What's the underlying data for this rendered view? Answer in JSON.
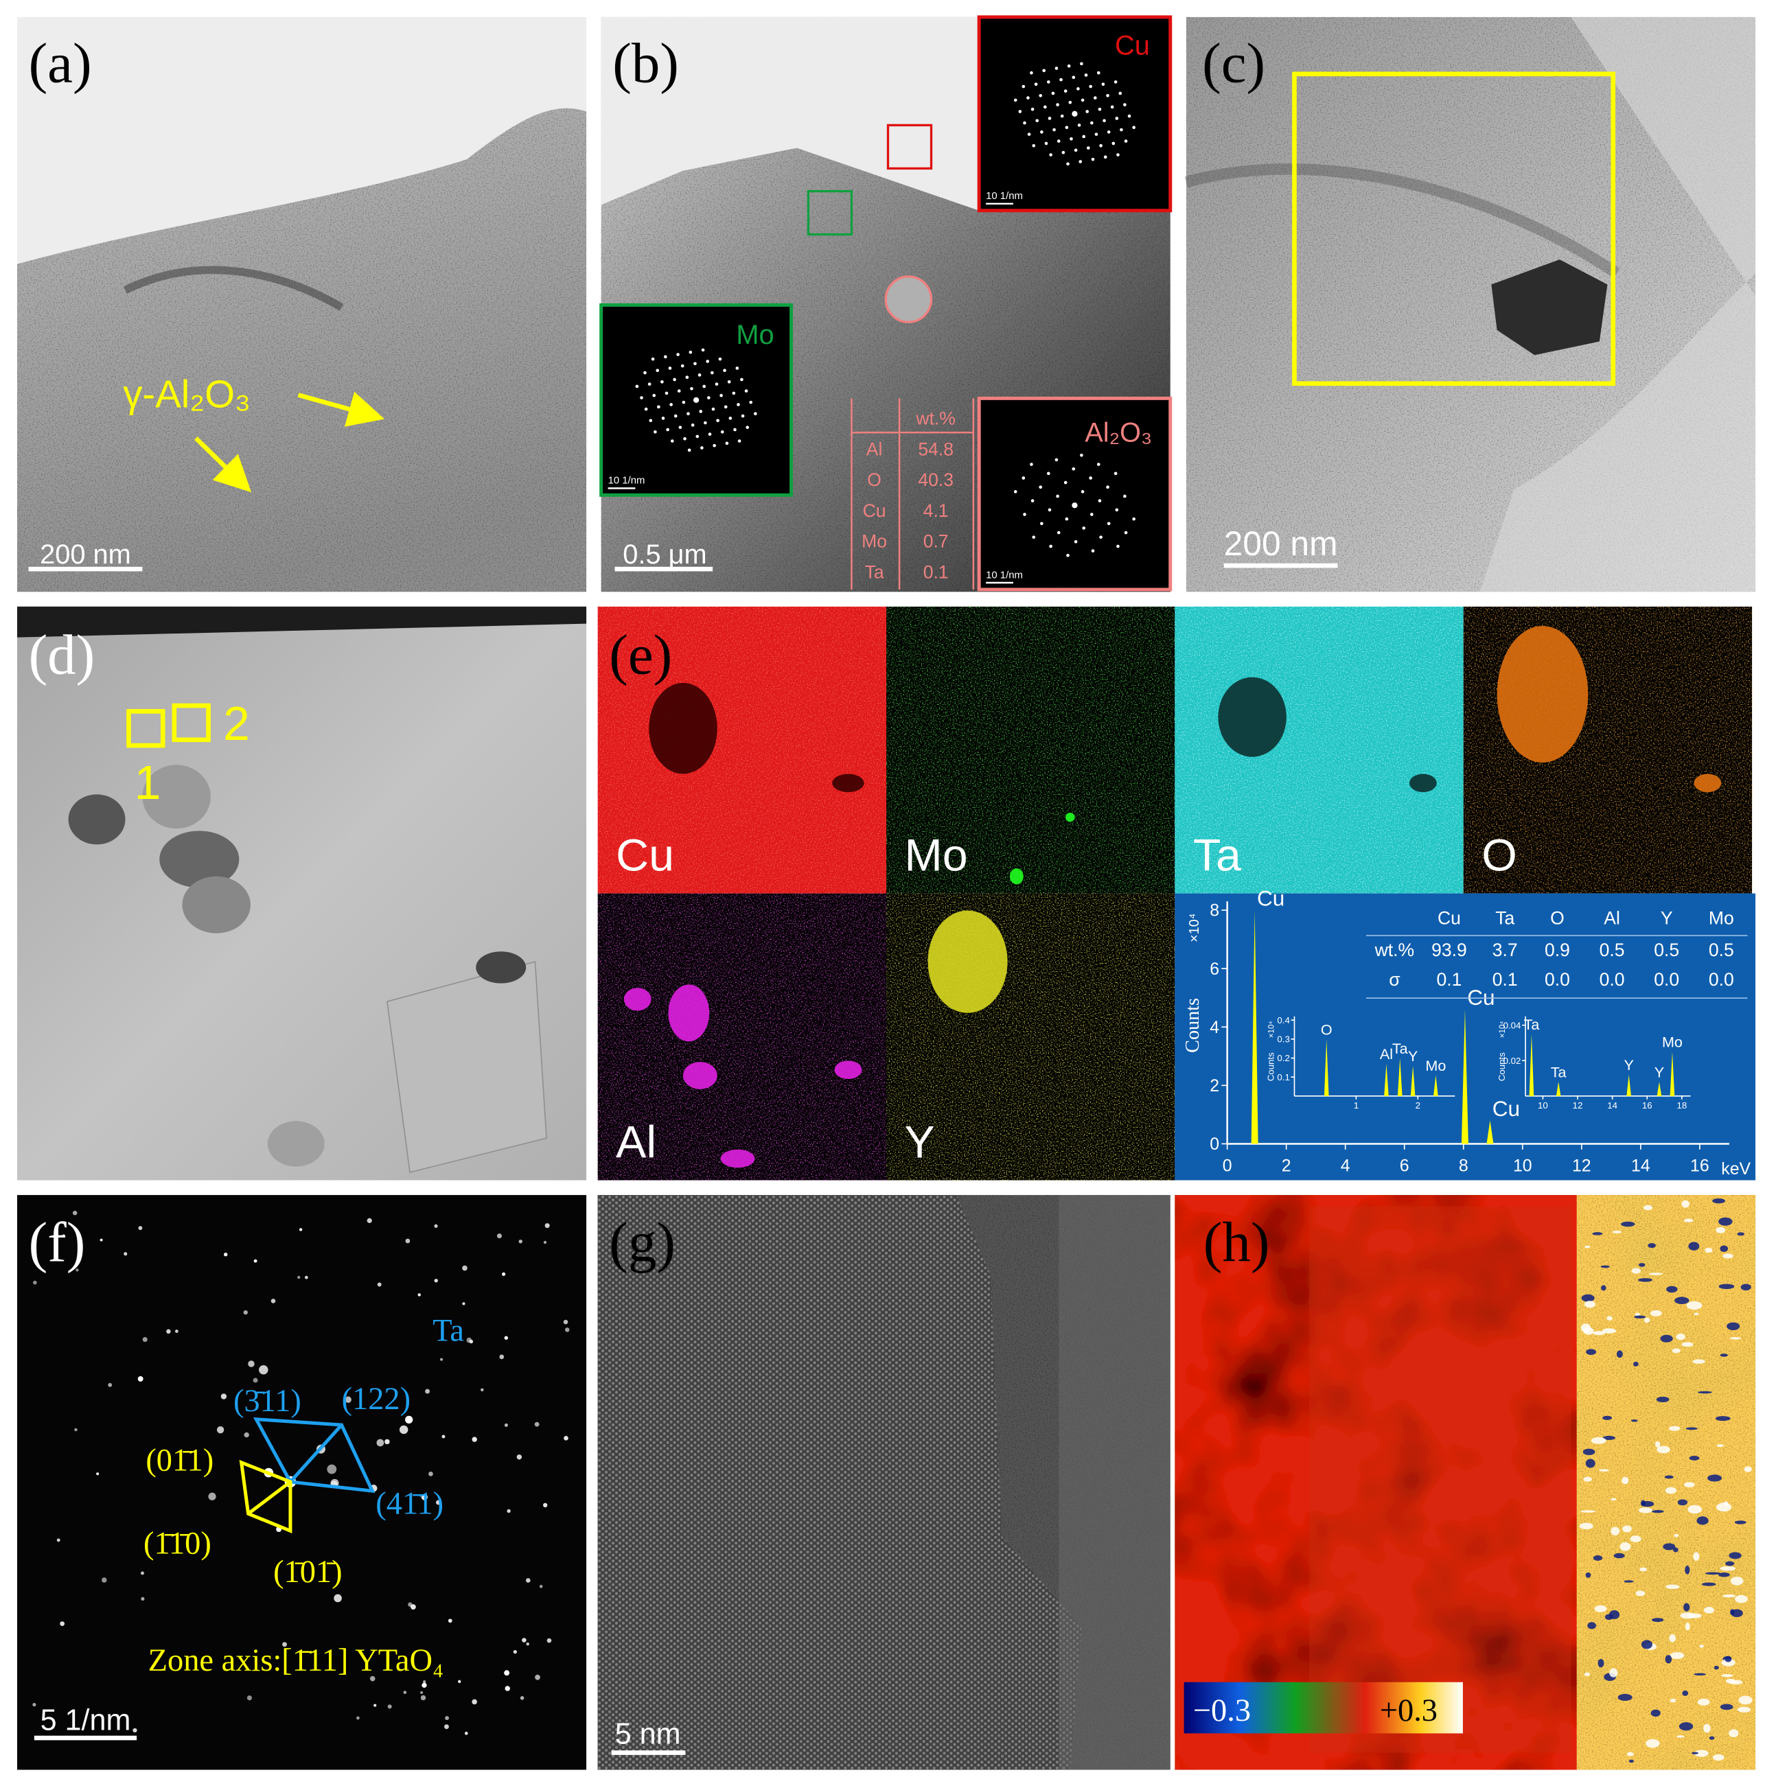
{
  "panels": {
    "a": {
      "label": "(a)",
      "annotation": "γ-Al₂O₃",
      "scale_bar": "200 nm"
    },
    "b": {
      "label": "(b)",
      "insets": [
        {
          "name": "Cu",
          "scale_bar": "10 1/nm"
        },
        {
          "name": "Mo",
          "scale_bar": "10 1/nm"
        },
        {
          "name": "Al₂O₃",
          "scale_bar": "10 1/nm"
        }
      ],
      "table": {
        "header": "wt.%",
        "rows": [
          [
            "Al",
            54.8
          ],
          [
            "O",
            40.3
          ],
          [
            "Cu",
            4.1
          ],
          [
            "Mo",
            0.7
          ],
          [
            "Ta",
            0.1
          ]
        ]
      },
      "scale_bar": "0.5 μm"
    },
    "c": {
      "label": "(c)",
      "scale_bar": "200 nm"
    },
    "d": {
      "label": "(d)",
      "regions": [
        "1",
        "2"
      ]
    },
    "e": {
      "label": "(e)",
      "maps": [
        "Cu",
        "Mo",
        "Ta",
        "O",
        "Al",
        "Y"
      ],
      "spectrum": {
        "ylabel": "Counts",
        "yunit": "×10⁴",
        "xlabel": "keV",
        "xlim": [
          0,
          17
        ],
        "ylim": [
          0,
          8.3
        ],
        "xticks": [
          0,
          2,
          4,
          6,
          8,
          10,
          12,
          14,
          16
        ],
        "yticks": [
          0,
          2,
          4,
          6,
          8
        ],
        "peaks": [
          {
            "label": "Cu",
            "x": 0.93,
            "y": 8.0
          },
          {
            "label": "Cu",
            "x": 8.05,
            "y": 4.6
          },
          {
            "label": "Cu",
            "x": 8.9,
            "y": 0.8
          }
        ],
        "table": {
          "columns": [
            "Cu",
            "Ta",
            "O",
            "Al",
            "Y",
            "Mo"
          ],
          "rows": [
            {
              "name": "wt.%",
              "values": [
                "93.9",
                "3.7",
                "0.9",
                "0.5",
                "0.5",
                "0.5"
              ]
            },
            {
              "name": "σ",
              "values": [
                "0.1",
                "0.1",
                "0.0",
                "0.0",
                "0.0",
                "0.0"
              ]
            }
          ]
        },
        "insets": [
          {
            "ylabel": "Counts",
            "yunit": "×10⁴",
            "xlim": [
              0,
              2.6
            ],
            "ylim": [
              0,
              0.42
            ],
            "xticks": [
              1,
              2
            ],
            "yticks": [
              0.1,
              0.2,
              0.3,
              0.4
            ],
            "peaks": [
              {
                "label": "O",
                "x": 0.52,
                "y": 0.3
              },
              {
                "label": "Al",
                "x": 1.49,
                "y": 0.17
              },
              {
                "label": "Ta",
                "x": 1.71,
                "y": 0.2
              },
              {
                "label": "Y",
                "x": 1.92,
                "y": 0.16
              },
              {
                "label": "Mo",
                "x": 2.29,
                "y": 0.11
              }
            ]
          },
          {
            "ylabel": "Counts",
            "yunit": "×10⁴",
            "xlim": [
              9,
              18.5
            ],
            "ylim": [
              0,
              0.045
            ],
            "xticks": [
              10,
              12,
              14,
              16,
              18
            ],
            "yticks": [
              0.02,
              0.04
            ],
            "peaks": [
              {
                "label": "Ta",
                "x": 9.35,
                "y": 0.035
              },
              {
                "label": "Ta",
                "x": 10.9,
                "y": 0.008
              },
              {
                "label": "Y",
                "x": 14.95,
                "y": 0.012
              },
              {
                "label": "Y",
                "x": 16.7,
                "y": 0.008
              },
              {
                "label": "Mo",
                "x": 17.45,
                "y": 0.025
              }
            ]
          }
        ]
      }
    },
    "f": {
      "label": "(f)",
      "phase": "Ta",
      "spots": [
        "(3̄11)",
        "(122)",
        "(41̄1)",
        "(01̄1)",
        "(1̄1̄0)",
        "(1̄01̄)"
      ],
      "zone_axis": "Zone axis:[1̄11] YTaO₄",
      "scale_bar": "5 1/nm"
    },
    "g": {
      "label": "(g)",
      "scale_bar": "5 nm"
    },
    "h": {
      "label": "(h)",
      "colorbar": [
        "−0.3",
        "+0.3"
      ]
    }
  }
}
